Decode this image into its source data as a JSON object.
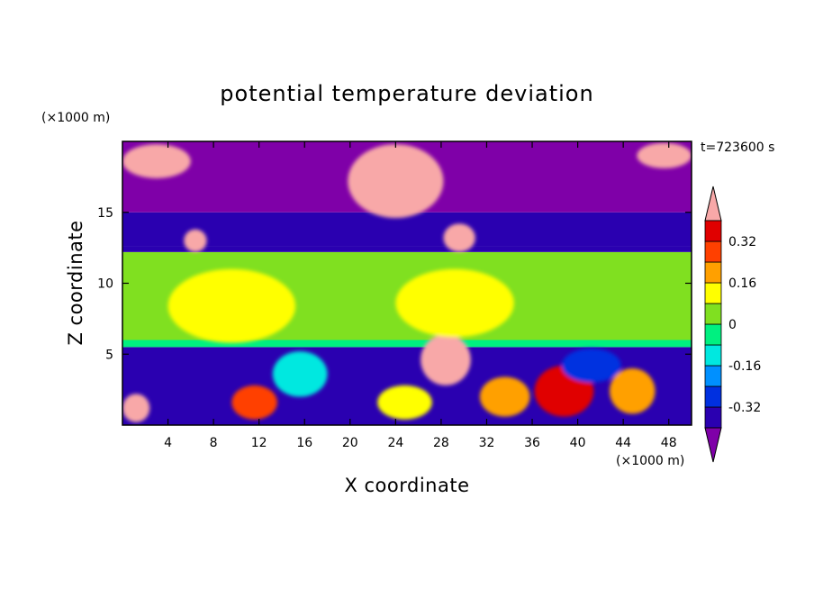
{
  "chart_data": {
    "type": "heatmap",
    "title": "potential temperature deviation",
    "xlabel": "X coordinate",
    "ylabel": "Z coordinate",
    "x_unit_label": "(×1000 m)",
    "y_unit_label": "(×1000 m)",
    "time_label": "t=723600 s",
    "xlim": [
      0,
      50
    ],
    "ylim": [
      0,
      20
    ],
    "x_ticks": [
      4,
      8,
      12,
      16,
      20,
      24,
      28,
      32,
      36,
      40,
      44,
      48
    ],
    "y_ticks": [
      5,
      10,
      15
    ],
    "colorbar": {
      "levels": [
        -0.4,
        -0.32,
        -0.24,
        -0.16,
        -0.08,
        0,
        0.08,
        0.16,
        0.24,
        0.32,
        0.4
      ],
      "colors": [
        "#7f00a8",
        "#2a00b0",
        "#0030e0",
        "#0090ff",
        "#00e8e0",
        "#00f080",
        "#80e020",
        "#ffff00",
        "#ffa000",
        "#ff4000",
        "#e00000",
        "#f8a8a8"
      ],
      "tick_labels": [
        "-0.32",
        "-0.16",
        "0",
        "0.16",
        "0.32"
      ],
      "tick_values": [
        -0.32,
        -0.16,
        0,
        0.16,
        0.32
      ],
      "extend": "both"
    },
    "bands": [
      {
        "z_from": 0,
        "z_to": 5.5,
        "value": -0.4
      },
      {
        "z_from": 5.5,
        "z_to": 6.0,
        "value": -0.04
      },
      {
        "z_from": 6.0,
        "z_to": 12.2,
        "value": 0.04
      },
      {
        "z_from": 12.2,
        "z_to": 12.6,
        "value": -0.4
      },
      {
        "z_from": 12.6,
        "z_to": 14.0,
        "value": -0.4
      },
      {
        "z_from": 14.0,
        "z_to": 15.0,
        "value": -0.36
      },
      {
        "z_from": 15.0,
        "z_to": 20,
        "value": -0.44
      }
    ],
    "anomalies": [
      {
        "x": 24,
        "z": 17.2,
        "rx": 4.2,
        "rz": 2.6,
        "value": 0.44
      },
      {
        "x": 29.6,
        "z": 13.2,
        "rx": 1.4,
        "rz": 1.0,
        "value": 0.44
      },
      {
        "x": 6.4,
        "z": 13.0,
        "rx": 1.0,
        "rz": 0.8,
        "value": 0.44
      },
      {
        "x": 28.4,
        "z": 4.6,
        "rx": 2.2,
        "rz": 1.8,
        "value": 0.44
      },
      {
        "x": 38.8,
        "z": 2.4,
        "rx": 2.6,
        "rz": 1.8,
        "value": 0.36
      },
      {
        "x": 11.6,
        "z": 1.6,
        "rx": 2.0,
        "rz": 1.2,
        "value": 0.28
      },
      {
        "x": 33.6,
        "z": 2.0,
        "rx": 2.2,
        "rz": 1.4,
        "value": 0.2
      },
      {
        "x": 24.8,
        "z": 1.6,
        "rx": 2.4,
        "rz": 1.2,
        "value": 0.12
      },
      {
        "x": 44.8,
        "z": 2.4,
        "rx": 2.0,
        "rz": 1.6,
        "value": 0.2
      },
      {
        "x": 1.2,
        "z": 1.2,
        "rx": 1.2,
        "rz": 1.0,
        "value": 0.44
      },
      {
        "x": 3.0,
        "z": 18.6,
        "rx": 3.0,
        "rz": 1.2,
        "value": 0.44
      },
      {
        "x": 47.6,
        "z": 19.0,
        "rx": 2.4,
        "rz": 0.9,
        "value": 0.44
      },
      {
        "x": 9.6,
        "z": 8.4,
        "rx": 5.6,
        "rz": 2.6,
        "value": 0.12
      },
      {
        "x": 29.2,
        "z": 8.6,
        "rx": 5.2,
        "rz": 2.4,
        "value": 0.12
      },
      {
        "x": 15.6,
        "z": 3.6,
        "rx": 2.4,
        "rz": 1.6,
        "value": -0.12
      },
      {
        "x": 41.2,
        "z": 4.2,
        "rx": 2.6,
        "rz": 1.2,
        "value": -0.28
      }
    ]
  }
}
